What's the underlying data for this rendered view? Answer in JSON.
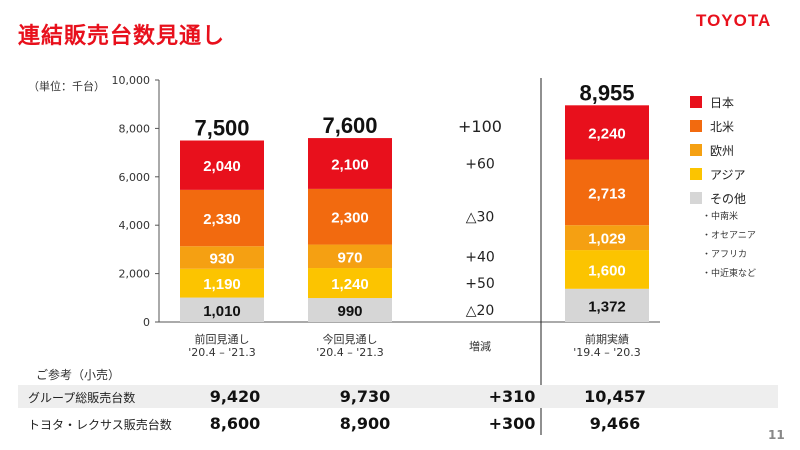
{
  "page": {
    "title": "連結販売台数見通し",
    "logo": "TOYOTA",
    "unit_label": "（単位：千台）",
    "page_number": "11"
  },
  "legend": {
    "items": [
      {
        "label": "日本",
        "color": "#e8101c"
      },
      {
        "label": "北米",
        "color": "#f26a0f"
      },
      {
        "label": "欧州",
        "color": "#f5a012"
      },
      {
        "label": "アジア",
        "color": "#fcc400"
      },
      {
        "label": "その他",
        "color": "#d6d6d6"
      }
    ],
    "regions": [
      "・中南米",
      "・オセアニア",
      "・アフリカ",
      "・中近東など"
    ]
  },
  "chart_data": {
    "type": "bar",
    "stacked": true,
    "ylim": [
      0,
      10000
    ],
    "yticks": [
      "0",
      "2,000",
      "4,000",
      "6,000",
      "8,000",
      "10,000"
    ],
    "grid": false,
    "categories": [
      [
        "前回見通し",
        "'20.4 – '21.3"
      ],
      [
        "今回見通し",
        "'20.4 – '21.3"
      ],
      [
        "増減"
      ],
      [
        "前期実績",
        "'19.4 – '20.3"
      ]
    ],
    "series": [
      {
        "name": "その他",
        "color": "#d6d6d6",
        "values": [
          1010,
          990,
          null,
          1372
        ],
        "labels": [
          "1,010",
          "990",
          null,
          "1,372"
        ]
      },
      {
        "name": "アジア",
        "color": "#fcc400",
        "values": [
          1190,
          1240,
          null,
          1600
        ],
        "labels": [
          "1,190",
          "1,240",
          null,
          "1,600"
        ]
      },
      {
        "name": "欧州",
        "color": "#f5a012",
        "values": [
          930,
          970,
          null,
          1029
        ],
        "labels": [
          "930",
          "970",
          null,
          "1,029"
        ]
      },
      {
        "name": "北米",
        "color": "#f26a0f",
        "values": [
          2330,
          2300,
          null,
          2713
        ],
        "labels": [
          "2,330",
          "2,300",
          null,
          "2,713"
        ]
      },
      {
        "name": "日本",
        "color": "#e8101c",
        "values": [
          2040,
          2100,
          null,
          2240
        ],
        "labels": [
          "2,040",
          "2,100",
          null,
          "2,240"
        ]
      }
    ],
    "totals": [
      "7,500",
      "7,600",
      null,
      "8,955"
    ],
    "changes": [
      {
        "series": "日本",
        "label": "+60"
      },
      {
        "series": "北米",
        "label": "△30"
      },
      {
        "series": "欧州",
        "label": "+40"
      },
      {
        "series": "アジア",
        "label": "+50"
      },
      {
        "series": "その他",
        "label": "△20"
      }
    ],
    "change_total": "+100"
  },
  "reference": {
    "label": "ご参考（小売）",
    "rows": [
      {
        "label": "グループ総販売台数",
        "values": [
          "9,420",
          "9,730",
          "+310",
          "10,457"
        ]
      },
      {
        "label": "トヨタ・レクサス販売台数",
        "values": [
          "8,600",
          "8,900",
          "+300",
          "9,466"
        ]
      }
    ]
  }
}
